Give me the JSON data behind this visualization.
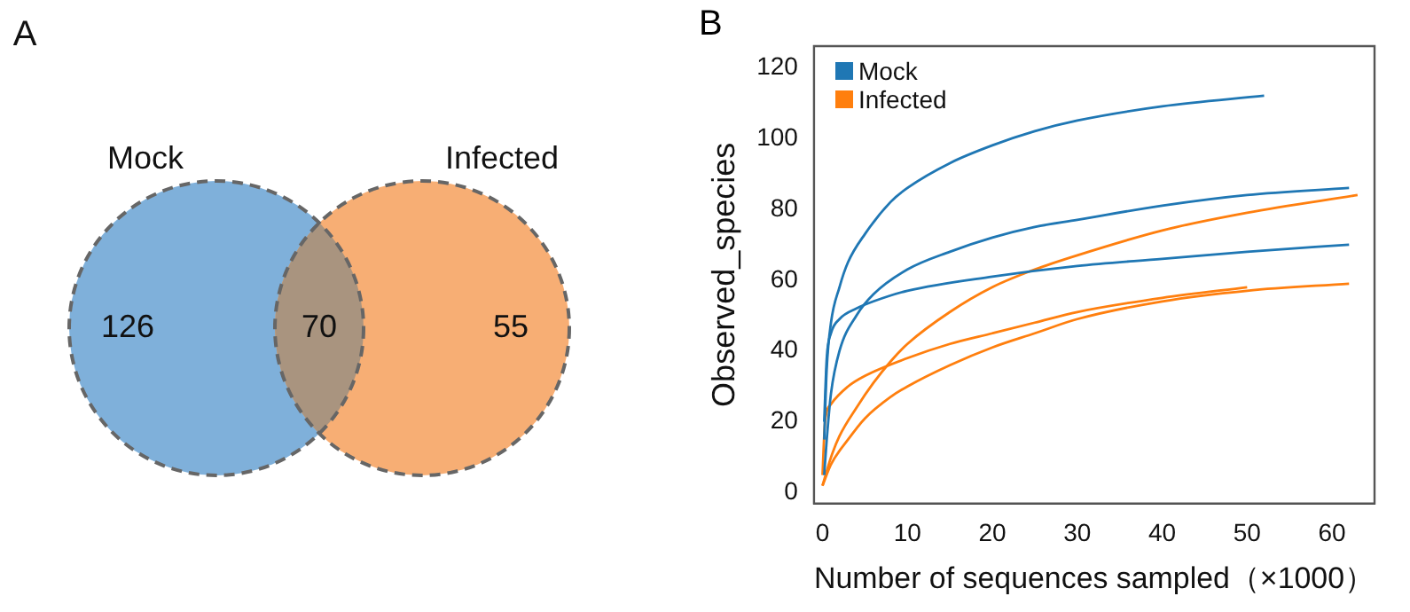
{
  "chart_data": [
    {
      "type": "other",
      "title": "A",
      "categories": [
        "Mock",
        null,
        "Infected"
      ],
      "values": [
        126,
        70,
        55
      ],
      "colors": [
        "#7fb0da",
        "#a9947f",
        "#f7ae74"
      ],
      "data_labels": true
    },
    {
      "type": "line",
      "title": "B",
      "xlabel": "Number of sequences sampled（×1000）",
      "ylabel": "Observed_species",
      "marker": "none",
      "grid": false,
      "legend": "top left",
      "xlim": [
        -1,
        65
      ],
      "xticks": [
        0,
        10,
        20,
        30,
        40,
        50,
        60
      ],
      "ylim": [
        -3,
        126
      ],
      "yticks": [
        0,
        20,
        40,
        60,
        80,
        100,
        120
      ],
      "series": [
        {
          "name": "Mock",
          "color": "#1f77b4",
          "x": [
            0.2,
            0.5,
            1,
            2,
            3,
            5,
            8,
            10,
            15,
            20,
            25,
            30,
            40,
            52
          ],
          "values": [
            15,
            35,
            48,
            58,
            65,
            73,
            82,
            86,
            93,
            98,
            102,
            105,
            109,
            112
          ]
        },
        {
          "color": "#1f77b4",
          "x": [
            0.2,
            0.5,
            1,
            2,
            4,
            6,
            10,
            15,
            20,
            25,
            30,
            40,
            50,
            62
          ],
          "values": [
            5,
            15,
            28,
            40,
            50,
            56,
            63,
            68,
            72,
            75,
            77,
            81,
            84,
            86
          ]
        },
        {
          "color": "#1f77b4",
          "x": [
            0.2,
            0.5,
            1,
            2,
            4,
            6,
            10,
            20,
            30,
            40,
            50,
            62
          ],
          "values": [
            20,
            38,
            45,
            49,
            52,
            54,
            57,
            61,
            64,
            66,
            68,
            70
          ]
        },
        {
          "name": "Infected",
          "color": "#ff7f0e",
          "x": [
            0,
            1,
            2,
            4,
            6,
            8,
            10,
            15,
            20,
            25,
            30,
            40,
            50,
            63
          ],
          "values": [
            2,
            10,
            16,
            24,
            31,
            37,
            42,
            51,
            58,
            63,
            67,
            74,
            79,
            84
          ]
        },
        {
          "color": "#ff7f0e",
          "x": [
            0,
            0.3,
            1,
            3,
            5,
            10,
            15,
            20,
            25,
            30,
            40,
            50
          ],
          "values": [
            5,
            20,
            25,
            30,
            33,
            38,
            42,
            45,
            48,
            51,
            55,
            58
          ]
        },
        {
          "color": "#ff7f0e",
          "x": [
            0,
            1,
            3,
            5,
            8,
            10,
            15,
            20,
            25,
            30,
            40,
            50,
            62
          ],
          "values": [
            2,
            8,
            15,
            21,
            27,
            30,
            36,
            41,
            45,
            49,
            54,
            57,
            59
          ]
        }
      ]
    }
  ]
}
